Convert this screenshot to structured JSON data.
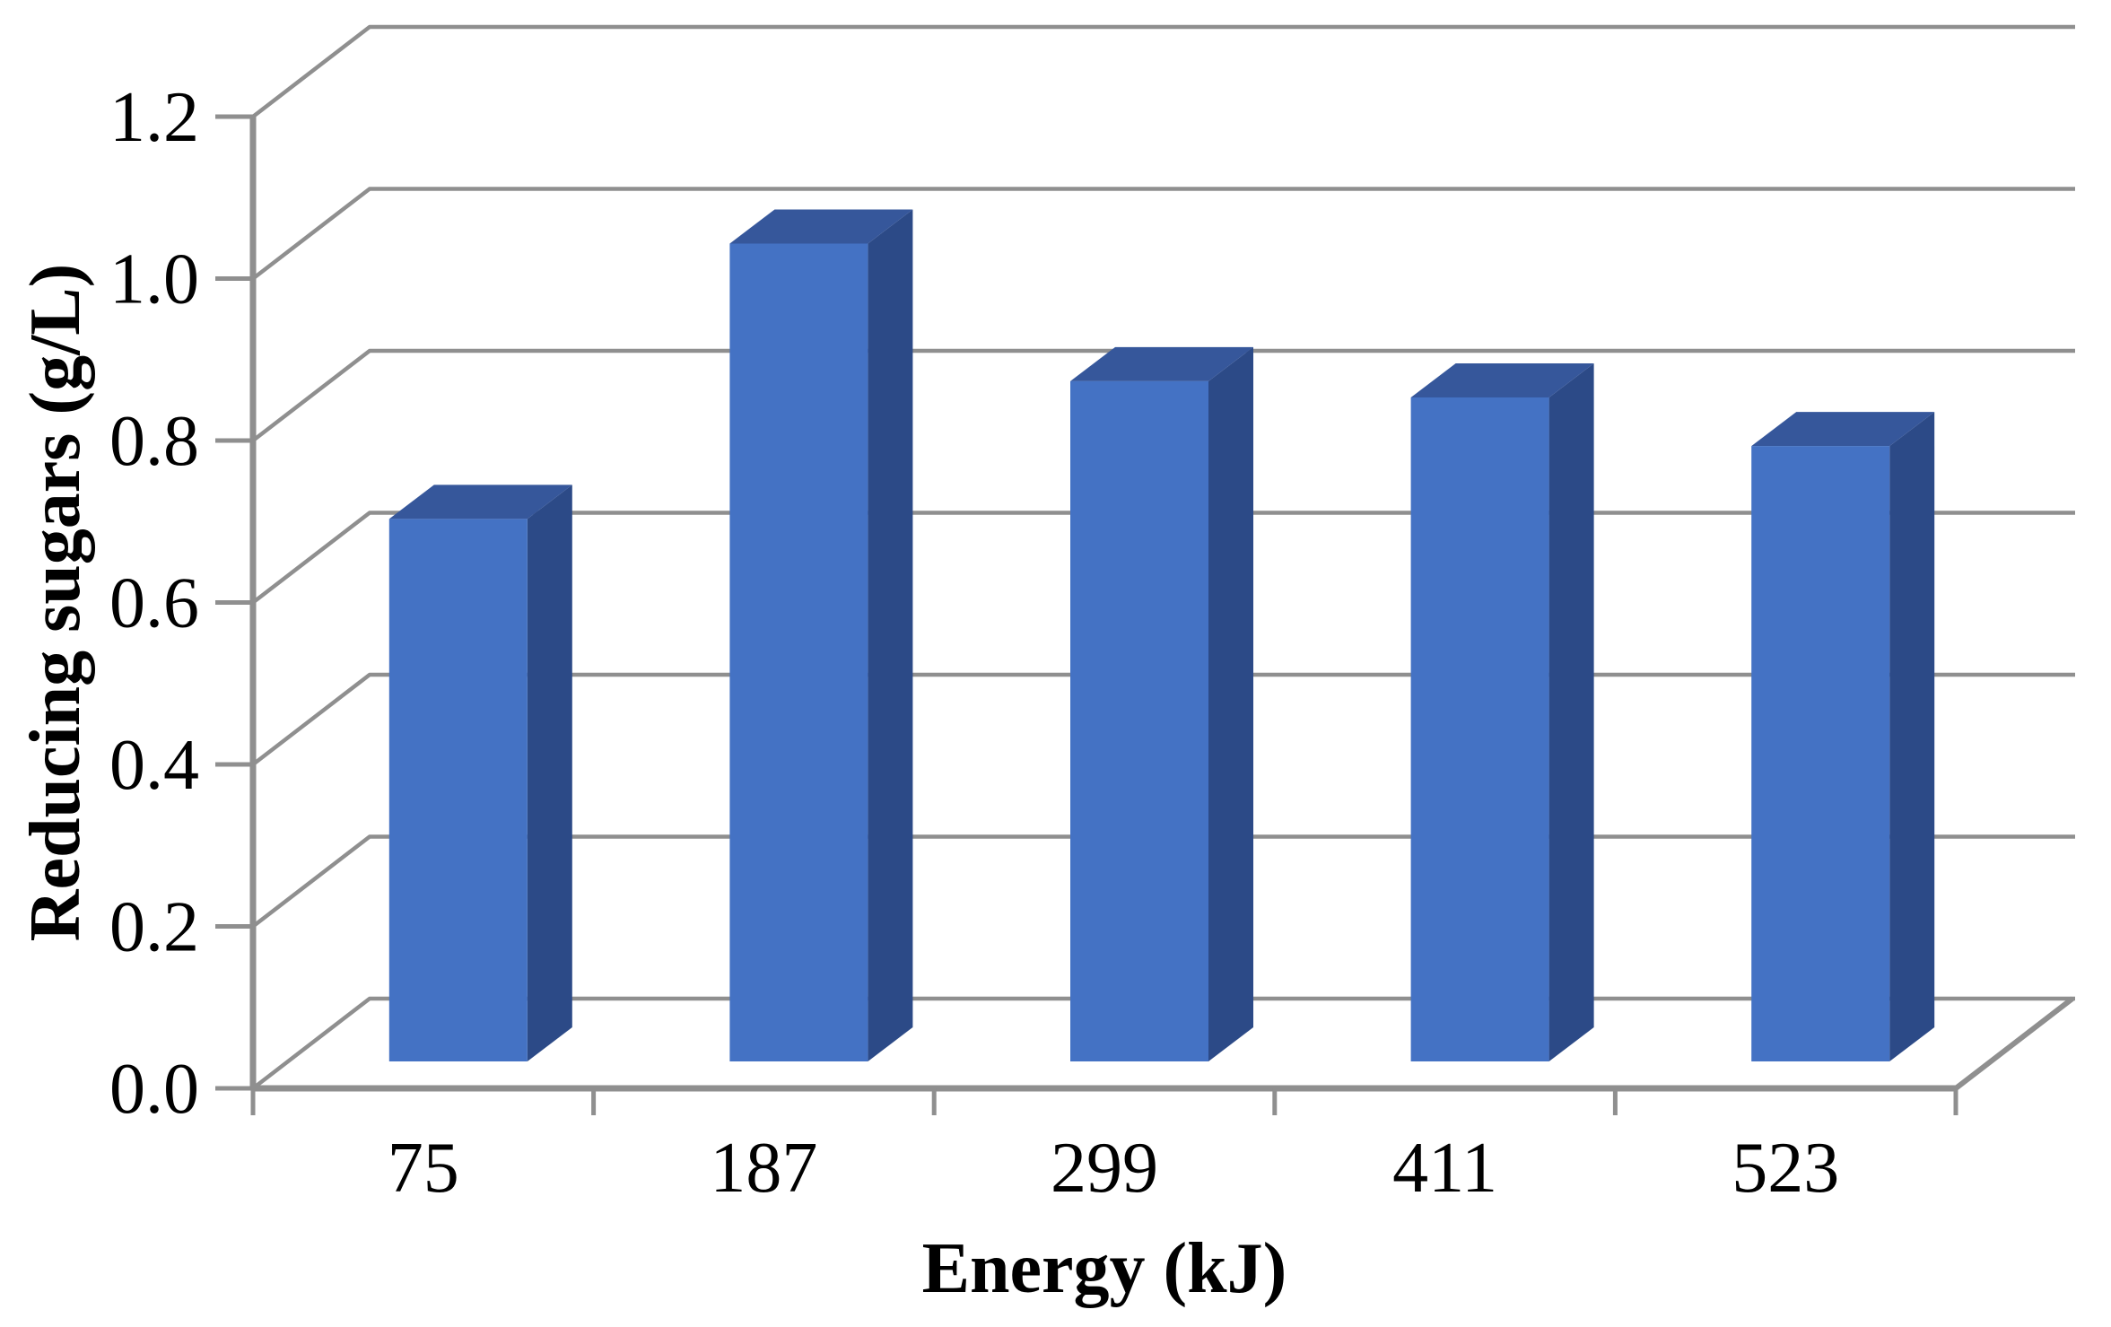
{
  "chart_data": {
    "type": "bar",
    "variant": "3d-column",
    "title": "",
    "xlabel": "Energy (kJ)",
    "ylabel": "Reducing sugars (g/L)",
    "categories": [
      "75",
      "187",
      "299",
      "411",
      "523"
    ],
    "values": [
      0.67,
      1.01,
      0.84,
      0.82,
      0.76
    ],
    "ylim": [
      0,
      1.2
    ],
    "ytick_step": 0.2,
    "ytick_labels": [
      "0.0",
      "0.2",
      "0.4",
      "0.6",
      "0.8",
      "1.0",
      "1.2"
    ],
    "grid": true,
    "legend": false,
    "colors": {
      "bar_front": "#4472C4",
      "bar_top": "#36579B",
      "bar_side": "#2C4A87",
      "gridline": "#8F8F8F",
      "axis": "#8F8F8F",
      "text": "#000000",
      "background": "#FFFFFF"
    }
  }
}
